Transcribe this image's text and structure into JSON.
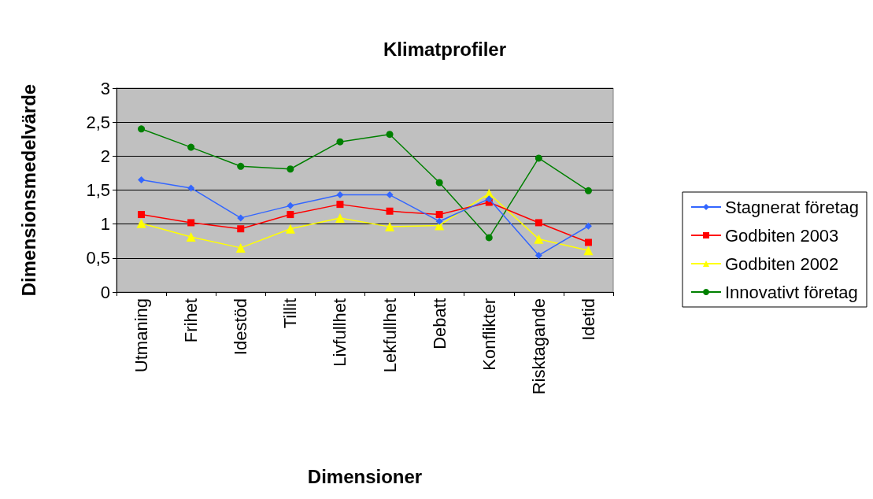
{
  "chart_data": {
    "type": "line",
    "title": "Klimatprofiler",
    "xlabel": "Dimensioner",
    "ylabel": "Dimensionsmedelvärde",
    "categories": [
      "Utmaning",
      "Frihet",
      "Idestöd",
      "Tillit",
      "Livfullhet",
      "Lekfullhet",
      "Debatt",
      "Konflikter",
      "Risktagande",
      "Idetid"
    ],
    "series": [
      {
        "name": "Stagnerat företag",
        "color": "#3366ff",
        "marker": "diamond",
        "values": [
          1.65,
          1.53,
          1.09,
          1.27,
          1.43,
          1.43,
          1.04,
          1.37,
          0.54,
          0.97
        ]
      },
      {
        "name": "Godbiten 2003",
        "color": "#ff0000",
        "marker": "square",
        "values": [
          1.14,
          1.02,
          0.93,
          1.14,
          1.29,
          1.19,
          1.14,
          1.32,
          1.02,
          0.73
        ]
      },
      {
        "name": "Godbiten 2002",
        "color": "#ffff00",
        "marker": "triangle",
        "values": [
          1.01,
          0.81,
          0.65,
          0.93,
          1.09,
          0.96,
          0.98,
          1.45,
          0.78,
          0.61
        ]
      },
      {
        "name": "Innovativt företag",
        "color": "#008000",
        "marker": "circle",
        "values": [
          2.4,
          2.13,
          1.85,
          1.81,
          2.21,
          2.32,
          1.61,
          0.8,
          1.97,
          1.49
        ]
      }
    ],
    "ylim": [
      0,
      3
    ],
    "yticks": [
      0,
      {
        "value": 0.5,
        "label": "0,5"
      },
      1,
      {
        "value": 1.5,
        "label": "1,5"
      },
      2,
      {
        "value": 2.5,
        "label": "2,5"
      },
      3
    ],
    "grid": "y",
    "legend": "right"
  }
}
